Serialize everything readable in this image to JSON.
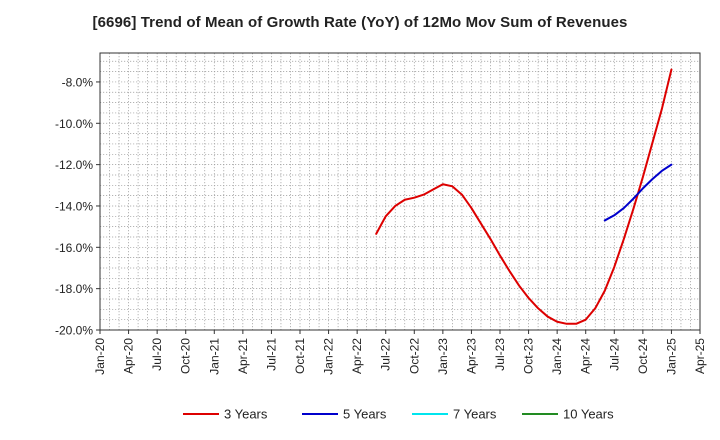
{
  "chart_data": {
    "type": "line",
    "title": "[6696]  Trend of Mean of Growth Rate (YoY) of 12Mo Mov Sum of Revenues",
    "xlabel": "",
    "ylabel": "",
    "x_tick_labels": [
      "Jan-20",
      "Apr-20",
      "Jul-20",
      "Oct-20",
      "Jan-21",
      "Apr-21",
      "Jul-21",
      "Oct-21",
      "Jan-22",
      "Apr-22",
      "Jul-22",
      "Oct-22",
      "Jan-23",
      "Apr-23",
      "Jul-23",
      "Oct-23",
      "Jan-24",
      "Apr-24",
      "Jul-24",
      "Oct-24",
      "Jan-25",
      "Apr-25"
    ],
    "y_ticks": [
      -8.0,
      -10.0,
      -12.0,
      -14.0,
      -16.0,
      -18.0,
      -20.0
    ],
    "y_tick_labels": [
      "-8.0%",
      "-10.0%",
      "-12.0%",
      "-14.0%",
      "-16.0%",
      "-18.0%",
      "-20.0%"
    ],
    "ylim": [
      -20.0,
      -6.6
    ],
    "grid": true,
    "legend_position": "bottom",
    "series": [
      {
        "name": "3 Years",
        "color": "#dd0000",
        "points": [
          {
            "x": "Jun-22",
            "y": -15.35
          },
          {
            "x": "Jul-22",
            "y": -14.5
          },
          {
            "x": "Aug-22",
            "y": -14.0
          },
          {
            "x": "Sep-22",
            "y": -13.7
          },
          {
            "x": "Oct-22",
            "y": -13.6
          },
          {
            "x": "Nov-22",
            "y": -13.45
          },
          {
            "x": "Dec-22",
            "y": -13.2
          },
          {
            "x": "Jan-23",
            "y": -12.95
          },
          {
            "x": "Feb-23",
            "y": -13.05
          },
          {
            "x": "Mar-23",
            "y": -13.45
          },
          {
            "x": "Apr-23",
            "y": -14.1
          },
          {
            "x": "May-23",
            "y": -14.85
          },
          {
            "x": "Jun-23",
            "y": -15.6
          },
          {
            "x": "Jul-23",
            "y": -16.4
          },
          {
            "x": "Aug-23",
            "y": -17.15
          },
          {
            "x": "Sep-23",
            "y": -17.85
          },
          {
            "x": "Oct-23",
            "y": -18.45
          },
          {
            "x": "Nov-23",
            "y": -18.95
          },
          {
            "x": "Dec-23",
            "y": -19.35
          },
          {
            "x": "Jan-24",
            "y": -19.6
          },
          {
            "x": "Feb-24",
            "y": -19.7
          },
          {
            "x": "Mar-24",
            "y": -19.7
          },
          {
            "x": "Apr-24",
            "y": -19.5
          },
          {
            "x": "May-24",
            "y": -18.95
          },
          {
            "x": "Jun-24",
            "y": -18.1
          },
          {
            "x": "Jul-24",
            "y": -16.95
          },
          {
            "x": "Aug-24",
            "y": -15.6
          },
          {
            "x": "Sep-24",
            "y": -14.15
          },
          {
            "x": "Oct-24",
            "y": -12.6
          },
          {
            "x": "Nov-24",
            "y": -10.95
          },
          {
            "x": "Dec-24",
            "y": -9.3
          },
          {
            "x": "Jan-25",
            "y": -7.4
          }
        ]
      },
      {
        "name": "5 Years",
        "color": "#0000cc",
        "points": [
          {
            "x": "Jun-24",
            "y": -14.7
          },
          {
            "x": "Jul-24",
            "y": -14.45
          },
          {
            "x": "Aug-24",
            "y": -14.1
          },
          {
            "x": "Sep-24",
            "y": -13.65
          },
          {
            "x": "Oct-24",
            "y": -13.15
          },
          {
            "x": "Nov-24",
            "y": -12.7
          },
          {
            "x": "Dec-24",
            "y": -12.3
          },
          {
            "x": "Jan-25",
            "y": -12.0
          }
        ]
      },
      {
        "name": "7 Years",
        "color": "#00e5ee",
        "points": []
      },
      {
        "name": "10 Years",
        "color": "#228b22",
        "points": []
      }
    ]
  }
}
